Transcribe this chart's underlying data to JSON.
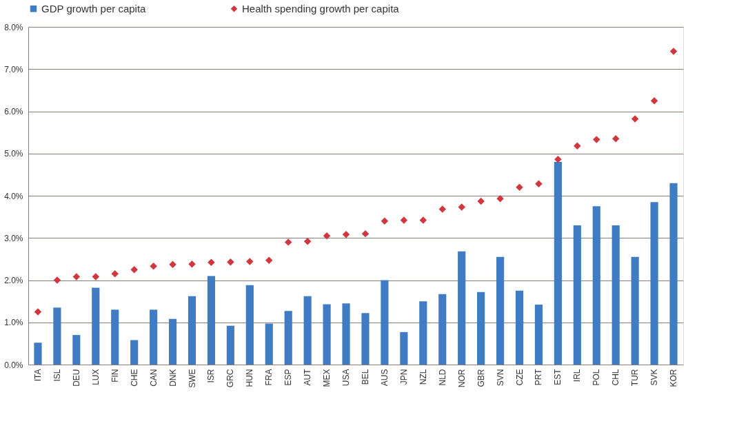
{
  "chart_data": {
    "type": "bar",
    "categories": [
      "ITA",
      "ISL",
      "DEU",
      "LUX",
      "FIN",
      "CHE",
      "CAN",
      "DNK",
      "SWE",
      "ISR",
      "GRC",
      "HUN",
      "FRA",
      "ESP",
      "AUT",
      "MEX",
      "USA",
      "BEL",
      "AUS",
      "JPN",
      "NZL",
      "NLD",
      "NOR",
      "GBR",
      "SVN",
      "CZE",
      "PRT",
      "EST",
      "IRL",
      "POL",
      "CHL",
      "TUR",
      "SVK",
      "KOR"
    ],
    "series": [
      {
        "name": "GDP growth per capita",
        "color": "#3f7cc4",
        "values": [
          0.52,
          1.35,
          0.7,
          1.82,
          1.3,
          0.58,
          1.3,
          1.08,
          1.62,
          2.1,
          0.92,
          1.88,
          0.97,
          1.27,
          1.62,
          1.43,
          1.45,
          1.22,
          2.0,
          0.77,
          1.5,
          1.67,
          2.68,
          1.72,
          2.55,
          1.75,
          1.42,
          4.8,
          3.3,
          3.75,
          3.3,
          2.55,
          3.85,
          4.3
        ]
      },
      {
        "name": "Health spending growth per capita",
        "type": "scatter",
        "marker": "diamond",
        "color": "#d0373f",
        "values": [
          1.25,
          2.0,
          2.08,
          2.08,
          2.15,
          2.25,
          2.33,
          2.37,
          2.38,
          2.42,
          2.43,
          2.44,
          2.47,
          2.9,
          2.92,
          3.05,
          3.08,
          3.1,
          3.4,
          3.42,
          3.42,
          3.68,
          3.73,
          3.87,
          3.93,
          4.2,
          4.28,
          4.86,
          5.18,
          5.33,
          5.35,
          5.82,
          6.25,
          7.42
        ]
      }
    ],
    "ylim": [
      0,
      8
    ],
    "yticks": [
      {
        "value": 0,
        "label": "0.0%"
      },
      {
        "value": 1,
        "label": "1.0%"
      },
      {
        "value": 2,
        "label": "2.0%"
      },
      {
        "value": 3,
        "label": "3.0%"
      },
      {
        "value": 4,
        "label": "4.0%"
      },
      {
        "value": 5,
        "label": "5.0%"
      },
      {
        "value": 6,
        "label": "6.0%"
      },
      {
        "value": 7,
        "label": "7.0%"
      },
      {
        "value": 8,
        "label": "8.0%"
      }
    ],
    "grid": "y",
    "legend": "top"
  }
}
